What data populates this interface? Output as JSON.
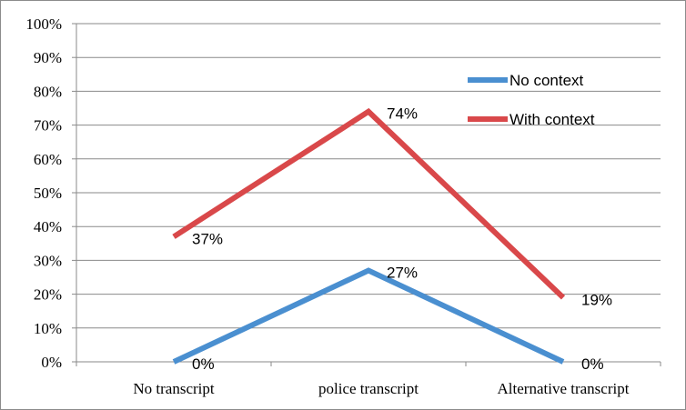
{
  "chart_data": {
    "type": "line",
    "title": "",
    "xlabel": "",
    "ylabel": "",
    "categories": [
      "No transcript",
      "police transcript",
      "Alternative transcript"
    ],
    "ylim": [
      0,
      100
    ],
    "yticks": [
      "0%",
      "10%",
      "20%",
      "30%",
      "40%",
      "50%",
      "60%",
      "70%",
      "80%",
      "90%",
      "100%"
    ],
    "grid": true,
    "legend_position": "top-right",
    "series": [
      {
        "name": "No context",
        "color": "#4a8fd0",
        "values": [
          0,
          27,
          0
        ],
        "labels": [
          "0%",
          "27%",
          "0%"
        ]
      },
      {
        "name": "With context",
        "color": "#d9484a",
        "values": [
          37,
          74,
          19
        ],
        "labels": [
          "37%",
          "74%",
          "19%"
        ]
      }
    ]
  }
}
